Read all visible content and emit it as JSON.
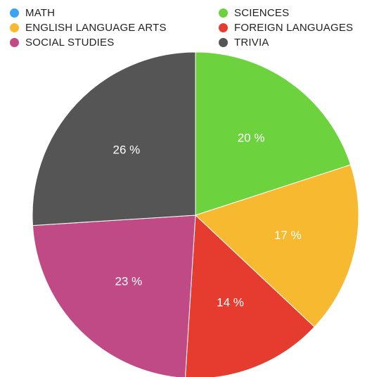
{
  "chart_data": {
    "type": "pie",
    "legend_position": "top",
    "legend": [
      {
        "label": "MATH",
        "color": "#3ea2f2"
      },
      {
        "label": "ENGLISH LANGUAGE ARTS",
        "color": "#f6b930"
      },
      {
        "label": "SOCIAL STUDIES",
        "color": "#c04a85"
      },
      {
        "label": "SCIENCES",
        "color": "#6cd33f"
      },
      {
        "label": "FOREIGN LANGUAGES",
        "color": "#e63c2f"
      },
      {
        "label": "TRIVIA",
        "color": "#555555"
      }
    ],
    "slices": [
      {
        "category": "SCIENCES",
        "value": 20,
        "label": "20 %",
        "color": "#6cd33f"
      },
      {
        "category": "ENGLISH LANGUAGE ARTS",
        "value": 17,
        "label": "17 %",
        "color": "#f6b930"
      },
      {
        "category": "FOREIGN LANGUAGES",
        "value": 14,
        "label": "14 %",
        "color": "#e63c2f"
      },
      {
        "category": "SOCIAL STUDIES",
        "value": 23,
        "label": "23 %",
        "color": "#c04a85"
      },
      {
        "category": "TRIVIA",
        "value": 26,
        "label": "26 %",
        "color": "#555555"
      }
    ]
  }
}
